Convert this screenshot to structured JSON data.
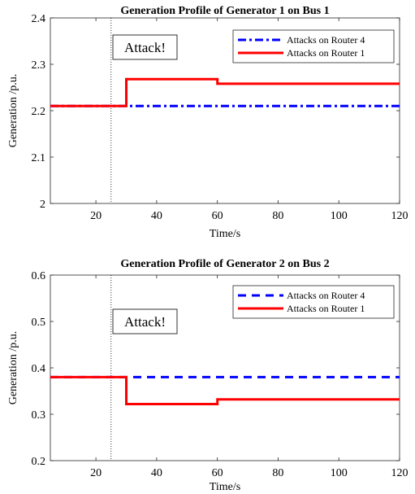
{
  "chart_data": [
    {
      "type": "line",
      "title": "Generation Profile of Generator 1 on Bus 1",
      "xlabel": "Time/s",
      "ylabel": "Generation /p.u.",
      "xlim": [
        5,
        120
      ],
      "ylim": [
        2,
        2.4
      ],
      "xticks": [
        20,
        40,
        60,
        80,
        100,
        120
      ],
      "yticks": [
        2,
        2.1,
        2.2,
        2.3,
        2.4
      ],
      "ytick_labels": [
        "2",
        "2.1",
        "2.2",
        "2.3",
        "2.4"
      ],
      "legend_position": "top-right",
      "grid": false,
      "series": [
        {
          "name": "Attacks on Router 4",
          "color": "#0000ff",
          "style": "dash-dot",
          "x": [
            5,
            120
          ],
          "y": [
            2.21,
            2.21
          ]
        },
        {
          "name": "Attacks on Router 1",
          "color": "#ff0000",
          "style": "solid",
          "x": [
            5,
            30,
            30,
            60,
            60,
            120
          ],
          "y": [
            2.21,
            2.21,
            2.268,
            2.268,
            2.258,
            2.258
          ]
        }
      ],
      "annotation": {
        "text": "Attack!",
        "x": 25
      }
    },
    {
      "type": "line",
      "title": "Generation Profile of Generator 2 on Bus 2",
      "xlabel": "Time/s",
      "ylabel": "Generation /p.u.",
      "xlim": [
        5,
        120
      ],
      "ylim": [
        0.2,
        0.6
      ],
      "xticks": [
        20,
        40,
        60,
        80,
        100,
        120
      ],
      "yticks": [
        0.2,
        0.3,
        0.4,
        0.5,
        0.6
      ],
      "ytick_labels": [
        "0.2",
        "0.3",
        "0.4",
        "0.5",
        "0.6"
      ],
      "legend_position": "top-right",
      "grid": false,
      "series": [
        {
          "name": "Attacks on Router 4",
          "color": "#0000ff",
          "style": "dashed",
          "x": [
            5,
            120
          ],
          "y": [
            0.38,
            0.38
          ]
        },
        {
          "name": "Attacks on Router 1",
          "color": "#ff0000",
          "style": "solid",
          "x": [
            5,
            30,
            30,
            60,
            60,
            120
          ],
          "y": [
            0.38,
            0.38,
            0.322,
            0.322,
            0.332,
            0.332
          ]
        }
      ],
      "annotation": {
        "text": "Attack!",
        "x": 25
      }
    }
  ]
}
